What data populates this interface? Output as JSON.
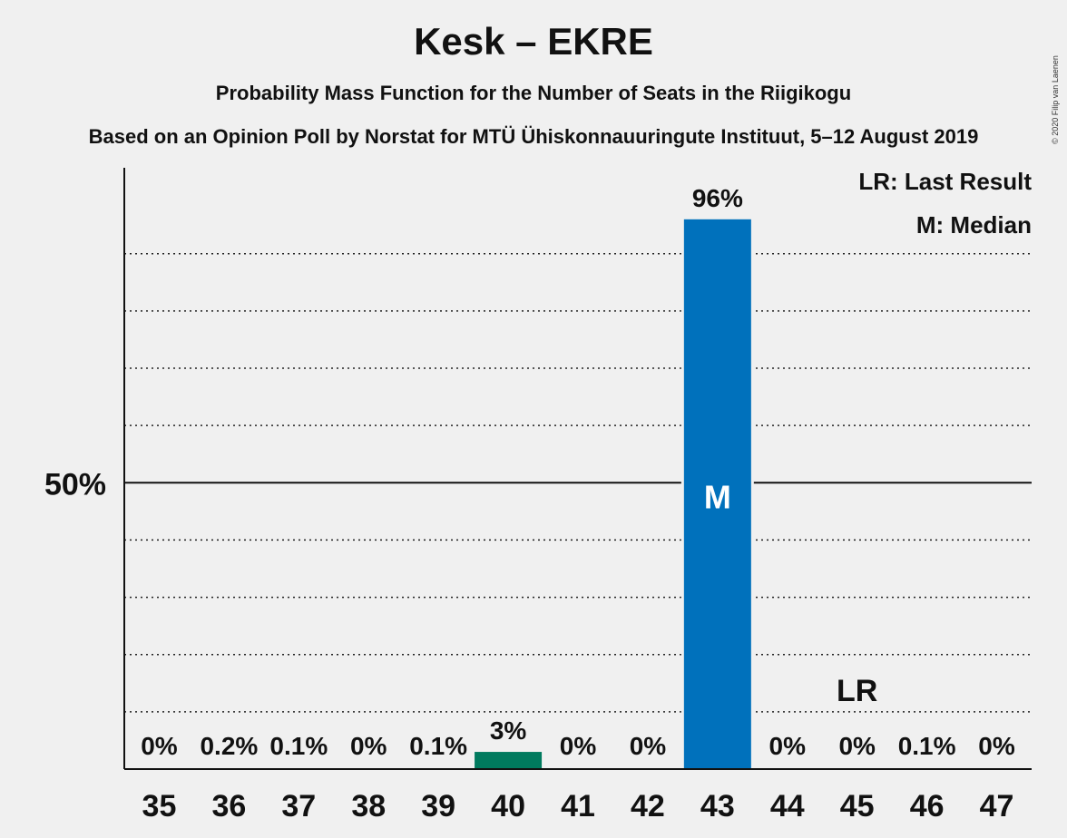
{
  "title": "Kesk – EKRE",
  "subtitle": "Probability Mass Function for the Number of Seats in the Riigikogu",
  "source": "Based on an Opinion Poll by Norstat for MTÜ Ühiskonnauuringute Instituut, 5–12 August 2019",
  "copyright": "© 2020 Filip van Laenen",
  "legend": {
    "last_result": "LR: Last Result",
    "median": "M: Median"
  },
  "colors": {
    "median_bar": "#0071bc",
    "other_bar": "#007a5e",
    "background": "#f0f0f0",
    "axis": "#111111"
  },
  "chart_data": {
    "type": "bar",
    "categories": [
      "35",
      "36",
      "37",
      "38",
      "39",
      "40",
      "41",
      "42",
      "43",
      "44",
      "45",
      "46",
      "47"
    ],
    "values": [
      0,
      0.2,
      0.1,
      0,
      0.1,
      3,
      0,
      0,
      96,
      0,
      0,
      0.1,
      0
    ],
    "value_labels": [
      "0%",
      "0.2%",
      "0.1%",
      "0%",
      "0.1%",
      "3%",
      "0%",
      "0%",
      "96%",
      "0%",
      "0%",
      "0.1%",
      "0%"
    ],
    "ylim": [
      0,
      105
    ],
    "y_tick_values": [
      50
    ],
    "y_tick_labels": [
      "50%"
    ],
    "grid": "dotted every 10%",
    "median_category": "43",
    "median_marker": "M",
    "last_result_category": "45",
    "last_result_marker": "LR",
    "legend_position": "top-right"
  }
}
